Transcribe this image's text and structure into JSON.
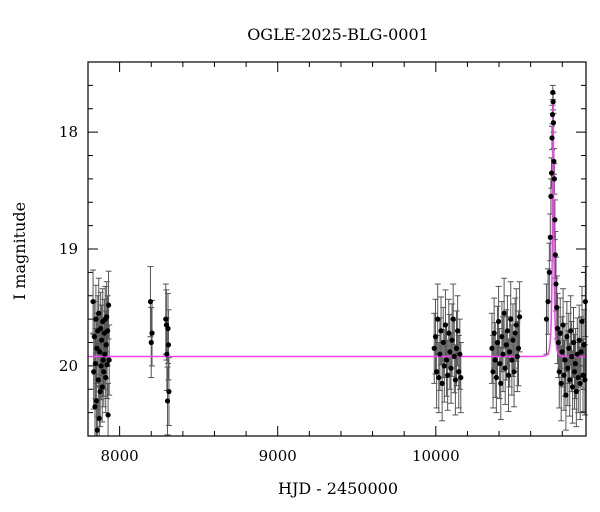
{
  "chart_data": {
    "type": "scatter",
    "title": "OGLE-2025-BLG-0001",
    "xlabel": "HJD - 2450000",
    "ylabel": "I magnitude",
    "xlim": [
      7800,
      10950
    ],
    "ylim": [
      20.6,
      17.4
    ],
    "y_inverted": true,
    "grid": false,
    "x_tick_labels": [
      "8000",
      "9000",
      "10000"
    ],
    "y_tick_labels": [
      "18",
      "19",
      "20"
    ],
    "colors": {
      "points": "#000000",
      "errorbars": "#555555",
      "model": "#ee44ee",
      "frame": "#000000"
    },
    "model": {
      "name": "",
      "baseline": 19.92,
      "peak_time": 10742,
      "peak_mag": 17.72,
      "tE": 12
    },
    "series": [
      {
        "name": "",
        "points": [
          {
            "x": 7832,
            "y": 19.45,
            "err": 0.27
          },
          {
            "x": 7836,
            "y": 20.05,
            "err": 0.32
          },
          {
            "x": 7840,
            "y": 19.75,
            "err": 0.3
          },
          {
            "x": 7844,
            "y": 20.35,
            "err": 0.28
          },
          {
            "x": 7847,
            "y": 19.98,
            "err": 0.3
          },
          {
            "x": 7850,
            "y": 19.6,
            "err": 0.29
          },
          {
            "x": 7853,
            "y": 20.3,
            "err": 0.31
          },
          {
            "x": 7856,
            "y": 19.85,
            "err": 0.3
          },
          {
            "x": 7859,
            "y": 20.55,
            "err": 0.25
          },
          {
            "x": 7862,
            "y": 19.7,
            "err": 0.3
          },
          {
            "x": 7865,
            "y": 20.12,
            "err": 0.31
          },
          {
            "x": 7868,
            "y": 19.55,
            "err": 0.3
          },
          {
            "x": 7871,
            "y": 20.45,
            "err": 0.28
          },
          {
            "x": 7874,
            "y": 19.88,
            "err": 0.3
          },
          {
            "x": 7877,
            "y": 20.22,
            "err": 0.3
          },
          {
            "x": 7880,
            "y": 19.68,
            "err": 0.31
          },
          {
            "x": 7883,
            "y": 20.0,
            "err": 0.29
          },
          {
            "x": 7886,
            "y": 19.78,
            "err": 0.3
          },
          {
            "x": 7890,
            "y": 20.18,
            "err": 0.3
          },
          {
            "x": 7893,
            "y": 19.62,
            "err": 0.28
          },
          {
            "x": 7896,
            "y": 19.95,
            "err": 0.31
          },
          {
            "x": 7900,
            "y": 20.05,
            "err": 0.3
          },
          {
            "x": 7903,
            "y": 19.72,
            "err": 0.29
          },
          {
            "x": 7906,
            "y": 19.9,
            "err": 0.3
          },
          {
            "x": 7909,
            "y": 19.6,
            "err": 0.28
          },
          {
            "x": 7912,
            "y": 20.1,
            "err": 0.3
          },
          {
            "x": 7915,
            "y": 19.82,
            "err": 0.29
          },
          {
            "x": 7918,
            "y": 19.58,
            "err": 0.3
          },
          {
            "x": 7921,
            "y": 19.99,
            "err": 0.29
          },
          {
            "x": 7924,
            "y": 19.7,
            "err": 0.3
          },
          {
            "x": 7927,
            "y": 20.42,
            "err": 0.27
          },
          {
            "x": 7930,
            "y": 19.48,
            "err": 0.29
          },
          {
            "x": 7934,
            "y": 19.95,
            "err": 0.3
          },
          {
            "x": 8195,
            "y": 19.45,
            "err": 0.3
          },
          {
            "x": 8200,
            "y": 19.8,
            "err": 0.3
          },
          {
            "x": 8205,
            "y": 19.72,
            "err": 0.28
          },
          {
            "x": 8292,
            "y": 19.6,
            "err": 0.3
          },
          {
            "x": 8296,
            "y": 19.65,
            "err": 0.3
          },
          {
            "x": 8299,
            "y": 19.9,
            "err": 0.31
          },
          {
            "x": 8303,
            "y": 20.3,
            "err": 0.29
          },
          {
            "x": 8306,
            "y": 19.68,
            "err": 0.3
          },
          {
            "x": 8309,
            "y": 19.82,
            "err": 0.3
          },
          {
            "x": 8312,
            "y": 20.22,
            "err": 0.29
          },
          {
            "x": 9990,
            "y": 19.85,
            "err": 0.3
          },
          {
            "x": 9998,
            "y": 19.75,
            "err": 0.32
          },
          {
            "x": 10005,
            "y": 20.05,
            "err": 0.31
          },
          {
            "x": 10012,
            "y": 19.6,
            "err": 0.3
          },
          {
            "x": 10019,
            "y": 20.1,
            "err": 0.3
          },
          {
            "x": 10026,
            "y": 19.9,
            "err": 0.31
          },
          {
            "x": 10033,
            "y": 19.7,
            "err": 0.29
          },
          {
            "x": 10040,
            "y": 20.15,
            "err": 0.32
          },
          {
            "x": 10047,
            "y": 19.8,
            "err": 0.3
          },
          {
            "x": 10054,
            "y": 20.0,
            "err": 0.31
          },
          {
            "x": 10061,
            "y": 19.65,
            "err": 0.3
          },
          {
            "x": 10068,
            "y": 19.95,
            "err": 0.31
          },
          {
            "x": 10075,
            "y": 20.08,
            "err": 0.3
          },
          {
            "x": 10082,
            "y": 19.72,
            "err": 0.29
          },
          {
            "x": 10089,
            "y": 19.88,
            "err": 0.32
          },
          {
            "x": 10096,
            "y": 20.02,
            "err": 0.3
          },
          {
            "x": 10103,
            "y": 19.78,
            "err": 0.31
          },
          {
            "x": 10110,
            "y": 19.6,
            "err": 0.3
          },
          {
            "x": 10117,
            "y": 19.92,
            "err": 0.31
          },
          {
            "x": 10124,
            "y": 20.12,
            "err": 0.3
          },
          {
            "x": 10131,
            "y": 19.85,
            "err": 0.32
          },
          {
            "x": 10138,
            "y": 19.7,
            "err": 0.3
          },
          {
            "x": 10145,
            "y": 20.05,
            "err": 0.31
          },
          {
            "x": 10152,
            "y": 19.9,
            "err": 0.3
          },
          {
            "x": 10158,
            "y": 20.1,
            "err": 0.3
          },
          {
            "x": 10355,
            "y": 19.85,
            "err": 0.3
          },
          {
            "x": 10362,
            "y": 20.05,
            "err": 0.31
          },
          {
            "x": 10369,
            "y": 19.72,
            "err": 0.3
          },
          {
            "x": 10376,
            "y": 19.95,
            "err": 0.32
          },
          {
            "x": 10383,
            "y": 20.1,
            "err": 0.3
          },
          {
            "x": 10390,
            "y": 19.8,
            "err": 0.31
          },
          {
            "x": 10397,
            "y": 19.62,
            "err": 0.3
          },
          {
            "x": 10404,
            "y": 19.98,
            "err": 0.3
          },
          {
            "x": 10411,
            "y": 20.15,
            "err": 0.31
          },
          {
            "x": 10418,
            "y": 19.75,
            "err": 0.3
          },
          {
            "x": 10425,
            "y": 19.9,
            "err": 0.32
          },
          {
            "x": 10432,
            "y": 19.55,
            "err": 0.3
          },
          {
            "x": 10439,
            "y": 20.02,
            "err": 0.31
          },
          {
            "x": 10446,
            "y": 19.82,
            "err": 0.3
          },
          {
            "x": 10453,
            "y": 19.7,
            "err": 0.3
          },
          {
            "x": 10460,
            "y": 20.08,
            "err": 0.31
          },
          {
            "x": 10467,
            "y": 19.88,
            "err": 0.3
          },
          {
            "x": 10474,
            "y": 19.6,
            "err": 0.32
          },
          {
            "x": 10481,
            "y": 19.95,
            "err": 0.3
          },
          {
            "x": 10488,
            "y": 19.78,
            "err": 0.31
          },
          {
            "x": 10495,
            "y": 20.05,
            "err": 0.3
          },
          {
            "x": 10502,
            "y": 19.72,
            "err": 0.3
          },
          {
            "x": 10509,
            "y": 19.65,
            "err": 0.31
          },
          {
            "x": 10516,
            "y": 19.92,
            "err": 0.3
          },
          {
            "x": 10523,
            "y": 19.85,
            "err": 0.32
          },
          {
            "x": 10530,
            "y": 19.58,
            "err": 0.3
          },
          {
            "x": 10700,
            "y": 19.6,
            "err": 0.3
          },
          {
            "x": 10710,
            "y": 19.45,
            "err": 0.28
          },
          {
            "x": 10718,
            "y": 19.2,
            "err": 0.25
          },
          {
            "x": 10724,
            "y": 18.9,
            "err": 0.2
          },
          {
            "x": 10728,
            "y": 18.55,
            "err": 0.15
          },
          {
            "x": 10732,
            "y": 18.35,
            "err": 0.13
          },
          {
            "x": 10735,
            "y": 18.05,
            "err": 0.1
          },
          {
            "x": 10738,
            "y": 17.85,
            "err": 0.08
          },
          {
            "x": 10740,
            "y": 17.66,
            "err": 0.06
          },
          {
            "x": 10742,
            "y": 17.74,
            "err": 0.07
          },
          {
            "x": 10744,
            "y": 17.92,
            "err": 0.08
          },
          {
            "x": 10747,
            "y": 18.25,
            "err": 0.11
          },
          {
            "x": 10750,
            "y": 18.4,
            "err": 0.13
          },
          {
            "x": 10753,
            "y": 18.75,
            "err": 0.17
          },
          {
            "x": 10756,
            "y": 19.05,
            "err": 0.2
          },
          {
            "x": 10760,
            "y": 19.3,
            "err": 0.23
          },
          {
            "x": 10765,
            "y": 19.5,
            "err": 0.27
          },
          {
            "x": 10770,
            "y": 19.68,
            "err": 0.3
          },
          {
            "x": 10775,
            "y": 19.8,
            "err": 0.3
          },
          {
            "x": 10781,
            "y": 20.05,
            "err": 0.31
          },
          {
            "x": 10787,
            "y": 19.72,
            "err": 0.3
          },
          {
            "x": 10793,
            "y": 20.15,
            "err": 0.32
          },
          {
            "x": 10799,
            "y": 19.88,
            "err": 0.3
          },
          {
            "x": 10805,
            "y": 19.65,
            "err": 0.31
          },
          {
            "x": 10811,
            "y": 20.08,
            "err": 0.3
          },
          {
            "x": 10817,
            "y": 19.95,
            "err": 0.31
          },
          {
            "x": 10823,
            "y": 20.25,
            "err": 0.3
          },
          {
            "x": 10829,
            "y": 19.75,
            "err": 0.3
          },
          {
            "x": 10835,
            "y": 20.02,
            "err": 0.32
          },
          {
            "x": 10841,
            "y": 19.85,
            "err": 0.3
          },
          {
            "x": 10847,
            "y": 20.12,
            "err": 0.31
          },
          {
            "x": 10853,
            "y": 19.7,
            "err": 0.3
          },
          {
            "x": 10859,
            "y": 19.92,
            "err": 0.3
          },
          {
            "x": 10865,
            "y": 20.18,
            "err": 0.31
          },
          {
            "x": 10871,
            "y": 19.8,
            "err": 0.3
          },
          {
            "x": 10877,
            "y": 20.05,
            "err": 0.32
          },
          {
            "x": 10883,
            "y": 19.98,
            "err": 0.3
          },
          {
            "x": 10889,
            "y": 20.22,
            "err": 0.3
          },
          {
            "x": 10895,
            "y": 19.9,
            "err": 0.31
          },
          {
            "x": 10901,
            "y": 20.1,
            "err": 0.3
          },
          {
            "x": 10907,
            "y": 19.78,
            "err": 0.3
          },
          {
            "x": 10913,
            "y": 20.15,
            "err": 0.31
          },
          {
            "x": 10919,
            "y": 19.88,
            "err": 0.3
          },
          {
            "x": 10925,
            "y": 19.62,
            "err": 0.3
          },
          {
            "x": 10931,
            "y": 20.08,
            "err": 0.31
          },
          {
            "x": 10937,
            "y": 19.82,
            "err": 0.3
          },
          {
            "x": 10943,
            "y": 20.12,
            "err": 0.3
          },
          {
            "x": 10946,
            "y": 19.45,
            "err": 0.3
          }
        ]
      }
    ]
  }
}
